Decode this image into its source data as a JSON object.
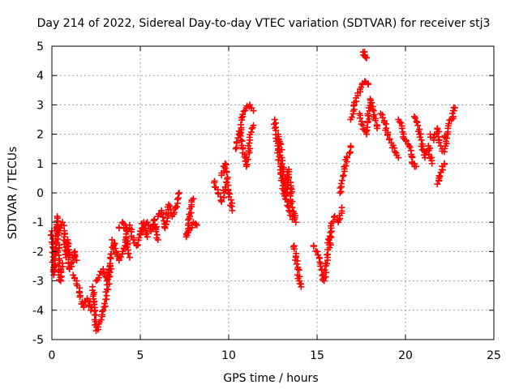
{
  "chart_data": {
    "type": "scatter",
    "title": "Day 214 of 2022, Sidereal Day-to-day VTEC variation (SDTVAR) for receiver stj3",
    "xlabel": "GPS time / hours",
    "ylabel": "SDTVAR / TECUs",
    "xlim": [
      0,
      25
    ],
    "ylim": [
      -5,
      5
    ],
    "xticks": [
      0,
      5,
      10,
      15,
      20,
      25
    ],
    "yticks": [
      -5,
      -4,
      -3,
      -2,
      -1,
      0,
      1,
      2,
      3,
      4,
      5
    ],
    "xtick_labels": [
      "0",
      "5",
      "10",
      "15",
      "20",
      "25"
    ],
    "ytick_labels": [
      "-5",
      "-4",
      "-3",
      "-2",
      "-1",
      "0",
      "1",
      "2",
      "3",
      "4",
      "5"
    ],
    "grid": true,
    "marker": "+",
    "color": "#ff0000",
    "series": [
      {
        "name": "SDTVAR",
        "segments": [
          {
            "x": [
              0.0,
              0.1,
              0.2,
              0.3,
              0.4,
              0.5,
              0.6
            ],
            "y": [
              -1.3,
              -2.8,
              -2.0,
              -0.8,
              -2.5,
              -3.0,
              -2.4
            ]
          },
          {
            "x": [
              0.5,
              0.6,
              0.7,
              0.8,
              0.9,
              1.0,
              1.1,
              1.2,
              1.3,
              1.4
            ],
            "y": [
              -1.2,
              -1.0,
              -1.5,
              -2.2,
              -1.6,
              -2.6,
              -2.4,
              -2.2,
              -2.0,
              -2.3
            ]
          },
          {
            "x": [
              1.2,
              1.4,
              1.6,
              1.8,
              2.0,
              2.2,
              2.4
            ],
            "y": [
              -2.8,
              -3.0,
              -3.5,
              -3.9,
              -3.6,
              -4.0,
              -3.7
            ]
          },
          {
            "x": [
              2.3,
              2.5,
              2.7,
              2.9,
              3.1,
              3.3
            ],
            "y": [
              -3.2,
              -4.7,
              -4.4,
              -4.0,
              -3.5,
              -2.5
            ]
          },
          {
            "x": [
              2.5,
              2.7,
              2.9,
              3.1,
              3.3,
              3.5
            ],
            "y": [
              -3.0,
              -2.8,
              -2.6,
              -3.0,
              -2.2,
              -1.8
            ]
          },
          {
            "x": [
              3.4,
              3.6,
              3.8,
              4.0,
              4.2,
              4.4
            ],
            "y": [
              -1.6,
              -1.9,
              -2.3,
              -2.0,
              -1.5,
              -2.2
            ]
          },
          {
            "x": [
              3.8,
              4.0,
              4.2,
              4.4,
              4.6,
              4.8,
              5.0,
              5.2,
              5.4
            ],
            "y": [
              -1.2,
              -1.0,
              -1.4,
              -1.1,
              -1.6,
              -1.8,
              -1.3,
              -1.0,
              -1.5
            ]
          },
          {
            "x": [
              5.0,
              5.2,
              5.4,
              5.6,
              5.8,
              6.0
            ],
            "y": [
              -1.4,
              -1.2,
              -1.0,
              -1.3,
              -0.9,
              -1.6
            ]
          },
          {
            "x": [
              6.0,
              6.2,
              6.4,
              6.6,
              6.8,
              7.0,
              7.2
            ],
            "y": [
              -0.8,
              -0.6,
              -1.2,
              -0.4,
              -0.8,
              -0.5,
              0.0
            ]
          },
          {
            "x": [
              7.6,
              7.7,
              7.8,
              7.9,
              8.0
            ],
            "y": [
              -1.4,
              -1.1,
              -0.8,
              -0.4,
              -0.2
            ]
          },
          {
            "x": [
              7.6,
              7.8,
              8.0,
              8.2
            ],
            "y": [
              -1.5,
              -1.2,
              -1.0,
              -1.1
            ]
          },
          {
            "x": [
              9.2,
              9.4,
              9.6,
              9.8
            ],
            "y": [
              0.4,
              0.0,
              -0.3,
              0.2
            ]
          },
          {
            "x": [
              9.6,
              9.8,
              10.0,
              10.2
            ],
            "y": [
              0.6,
              1.0,
              0.0,
              -0.6
            ]
          },
          {
            "x": [
              10.4,
              10.6,
              10.8,
              11.0,
              11.2,
              11.4
            ],
            "y": [
              1.5,
              2.0,
              2.6,
              2.9,
              3.0,
              2.8
            ]
          },
          {
            "x": [
              10.6,
              10.8,
              11.0,
              11.2,
              11.4
            ],
            "y": [
              2.1,
              1.5,
              0.9,
              1.8,
              2.3
            ]
          },
          {
            "x": [
              12.6,
              12.8,
              13.0,
              13.2,
              13.4,
              13.6,
              13.8
            ],
            "y": [
              2.5,
              1.5,
              0.5,
              -0.2,
              0.8,
              -0.5,
              -1.0
            ]
          },
          {
            "x": [
              12.8,
              13.0,
              13.2,
              13.4,
              13.6
            ],
            "y": [
              2.0,
              1.2,
              0.0,
              -0.6,
              -0.9
            ]
          },
          {
            "x": [
              13.7,
              13.8,
              13.9,
              14.0,
              14.1
            ],
            "y": [
              -1.8,
              -2.2,
              -2.6,
              -3.0,
              -3.2
            ]
          },
          {
            "x": [
              14.8,
              15.0,
              15.2,
              15.4,
              15.6,
              15.8
            ],
            "y": [
              -1.8,
              -2.0,
              -2.5,
              -3.0,
              -2.2,
              -1.5
            ]
          },
          {
            "x": [
              15.6,
              15.8,
              16.0,
              16.2,
              16.4
            ],
            "y": [
              -1.7,
              -1.2,
              -0.8,
              -1.0,
              -0.5
            ]
          },
          {
            "x": [
              16.3,
              16.5,
              16.7,
              16.9
            ],
            "y": [
              0.0,
              0.6,
              1.2,
              1.6
            ]
          },
          {
            "x": [
              16.9,
              17.1,
              17.3,
              17.5,
              17.7,
              17.9
            ],
            "y": [
              2.5,
              3.0,
              3.4,
              3.6,
              3.8,
              3.7
            ]
          },
          {
            "x": [
              17.6,
              17.7,
              17.8
            ],
            "y": [
              4.8,
              4.7,
              4.6
            ]
          },
          {
            "x": [
              17.4,
              17.6,
              17.8,
              18.0,
              18.2,
              18.4
            ],
            "y": [
              2.7,
              2.3,
              2.0,
              3.2,
              2.8,
              2.2
            ]
          },
          {
            "x": [
              18.6,
              18.8,
              19.0,
              19.2,
              19.4,
              19.6
            ],
            "y": [
              2.7,
              2.4,
              2.0,
              1.7,
              1.4,
              1.2
            ]
          },
          {
            "x": [
              19.6,
              19.8,
              20.0,
              20.2,
              20.4,
              20.6
            ],
            "y": [
              2.5,
              2.2,
              1.8,
              1.6,
              1.0,
              0.9
            ]
          },
          {
            "x": [
              20.5,
              20.7,
              20.9,
              21.1,
              21.3,
              21.5
            ],
            "y": [
              2.6,
              2.3,
              1.8,
              1.2,
              1.6,
              1.0
            ]
          },
          {
            "x": [
              21.4,
              21.6,
              21.8,
              22.0,
              22.2,
              22.4
            ],
            "y": [
              2.0,
              1.8,
              2.2,
              1.6,
              1.4,
              2.0
            ]
          },
          {
            "x": [
              21.8,
              21.9,
              22.0,
              22.1,
              22.2
            ],
            "y": [
              0.3,
              0.5,
              0.7,
              0.9,
              1.0
            ]
          },
          {
            "x": [
              22.2,
              22.4,
              22.6,
              22.7,
              22.8
            ],
            "y": [
              1.9,
              2.2,
              2.5,
              2.8,
              2.9
            ]
          }
        ]
      }
    ]
  }
}
